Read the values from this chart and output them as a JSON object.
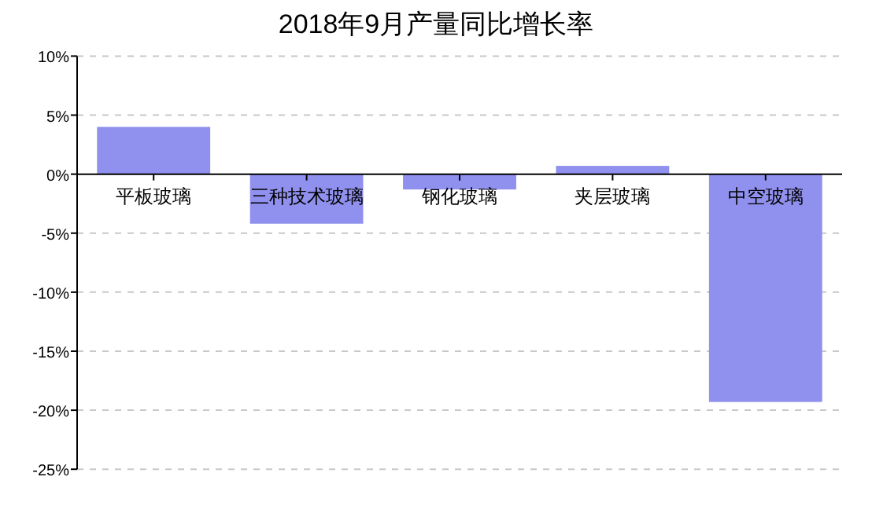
{
  "chart_data": {
    "type": "bar",
    "title": "2018年9月产量同比增长率",
    "categories": [
      "平板玻璃",
      "三种技术玻璃",
      "钢化玻璃",
      "夹层玻璃",
      "中空玻璃"
    ],
    "values": [
      4.0,
      -4.2,
      -1.3,
      0.7,
      -19.3
    ],
    "color": "#9090ee",
    "ylim": [
      -25,
      10
    ],
    "yticks": [
      {
        "value": 10,
        "label": "10%"
      },
      {
        "value": 5,
        "label": "5%"
      },
      {
        "value": 0,
        "label": "0%"
      },
      {
        "value": -5,
        "label": "-5%"
      },
      {
        "value": -10,
        "label": "-10%"
      },
      {
        "value": -15,
        "label": "-15%"
      },
      {
        "value": -20,
        "label": "-20%"
      },
      {
        "value": -25,
        "label": "-25%"
      }
    ],
    "grid": "y"
  }
}
